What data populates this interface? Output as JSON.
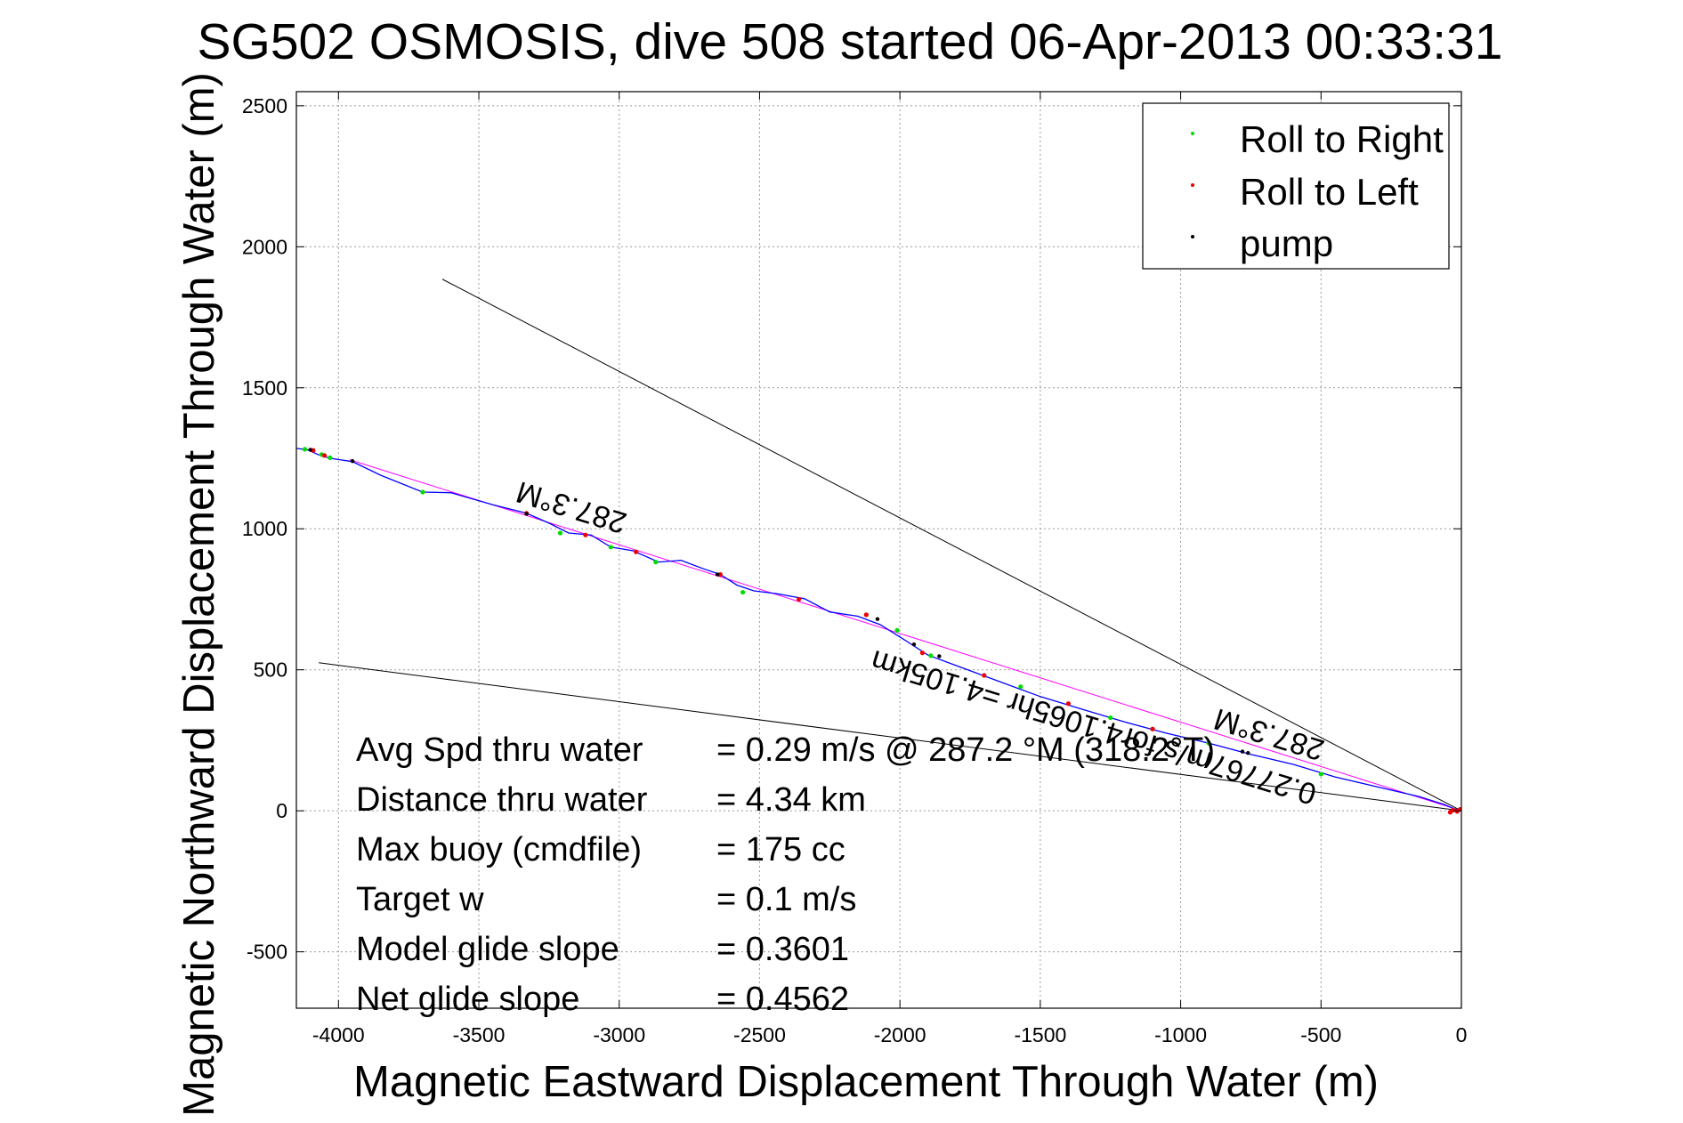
{
  "chart_data": {
    "type": "scatter",
    "title": "SG502 OSMOSIS, dive 508 started 06-Apr-2013 00:33:31",
    "xlabel": "Magnetic Eastward Displacement Through Water (m)",
    "ylabel": "Magnetic Northward Displacement Through Water (m)",
    "xlim": [
      -4150,
      0
    ],
    "ylim": [
      -700,
      2550
    ],
    "xticks": [
      -4000,
      -3500,
      -3000,
      -2500,
      -2000,
      -1500,
      -1000,
      -500,
      0
    ],
    "yticks": [
      -500,
      0,
      500,
      1000,
      1500,
      2000,
      2500
    ],
    "xtick_labels": [
      "-4000",
      "-3500",
      "-3000",
      "-2500",
      "-2000",
      "-1500",
      "-1000",
      "-500",
      "0"
    ],
    "ytick_labels": [
      "-500",
      "0",
      "500",
      "1000",
      "1500",
      "2000",
      "2500"
    ],
    "grid": true,
    "legend_position": "top-right",
    "legend": [
      {
        "label": "Roll to Right",
        "color": "#00dd00"
      },
      {
        "label": "Roll to Left",
        "color": "#ee0000"
      },
      {
        "label": "pump",
        "color": "#000000"
      }
    ],
    "track": {
      "color": "#0000ff",
      "points": [
        [
          -4150,
          1285
        ],
        [
          -4110,
          1280
        ],
        [
          -4070,
          1262
        ],
        [
          -4030,
          1250
        ],
        [
          -3950,
          1238
        ],
        [
          -3850,
          1190
        ],
        [
          -3700,
          1130
        ],
        [
          -3600,
          1128
        ],
        [
          -3450,
          1085
        ],
        [
          -3330,
          1055
        ],
        [
          -3250,
          1020
        ],
        [
          -3180,
          985
        ],
        [
          -3100,
          978
        ],
        [
          -3030,
          935
        ],
        [
          -2950,
          922
        ],
        [
          -2860,
          882
        ],
        [
          -2780,
          888
        ],
        [
          -2700,
          858
        ],
        [
          -2640,
          838
        ],
        [
          -2580,
          800
        ],
        [
          -2520,
          780
        ],
        [
          -2440,
          770
        ],
        [
          -2340,
          752
        ],
        [
          -2250,
          705
        ],
        [
          -2150,
          690
        ],
        [
          -2070,
          660
        ],
        [
          -1990,
          610
        ],
        [
          -1900,
          552
        ],
        [
          -1800,
          515
        ],
        [
          -1650,
          460
        ],
        [
          -1500,
          405
        ],
        [
          -1350,
          360
        ],
        [
          -1200,
          315
        ],
        [
          -1050,
          275
        ],
        [
          -900,
          240
        ],
        [
          -750,
          200
        ],
        [
          -600,
          165
        ],
        [
          -450,
          120
        ],
        [
          -300,
          85
        ],
        [
          -150,
          50
        ],
        [
          -60,
          22
        ],
        [
          -20,
          5
        ],
        [
          0,
          0
        ]
      ]
    },
    "fit_line": {
      "color": "#ff00ff",
      "points": [
        [
          -3960,
          1245
        ],
        [
          0,
          0
        ]
      ]
    },
    "right_roll_points": [
      [
        -4120,
        1282
      ],
      [
        -4060,
        1263
      ],
      [
        -4030,
        1252
      ],
      [
        -3700,
        1130
      ],
      [
        -3210,
        985
      ],
      [
        -3030,
        935
      ],
      [
        -2870,
        882
      ],
      [
        -2560,
        775
      ],
      [
        -2010,
        640
      ],
      [
        -1890,
        550
      ],
      [
        -1570,
        440
      ],
      [
        -1250,
        330
      ],
      [
        -900,
        240
      ],
      [
        -500,
        130
      ]
    ],
    "left_roll_points": [
      [
        -4090,
        1278
      ],
      [
        -4050,
        1260
      ],
      [
        -3330,
        1055
      ],
      [
        -3120,
        978
      ],
      [
        -2940,
        918
      ],
      [
        -2640,
        838
      ],
      [
        -2360,
        750
      ],
      [
        -2120,
        695
      ],
      [
        -1920,
        560
      ],
      [
        -1700,
        480
      ],
      [
        -1400,
        380
      ],
      [
        -1100,
        290
      ],
      [
        -40,
        -5
      ],
      [
        -30,
        2
      ],
      [
        -15,
        -2
      ],
      [
        -5,
        5
      ]
    ],
    "pump_points": [
      [
        -4100,
        1280
      ],
      [
        -3950,
        1240
      ],
      [
        -3330,
        1053
      ],
      [
        -2650,
        838
      ],
      [
        -2080,
        680
      ],
      [
        -1950,
        590
      ],
      [
        -1860,
        548
      ],
      [
        -780,
        210
      ],
      [
        -760,
        205
      ]
    ],
    "reference_lines": [
      {
        "points": [
          [
            -3630,
            1885
          ],
          [
            0,
            0
          ]
        ],
        "color": "#000000"
      },
      {
        "points": [
          [
            -4070,
            525
          ],
          [
            0,
            0
          ]
        ],
        "color": "#000000"
      }
    ],
    "annotations": [
      {
        "text": "287.3°M",
        "x": -3160,
        "y": 1110,
        "rotation": 197
      },
      {
        "text": "0.27767m/s for4.1065hr =4.105km",
        "x": -1300,
        "y": 330,
        "rotation": 197
      },
      {
        "text": "287.3°M",
        "x": -675,
        "y": 305,
        "rotation": 197
      }
    ],
    "stats": [
      {
        "label": "Avg Spd thru water",
        "value": "=  0.29 m/s @ 287.2 °M (318.2°T)"
      },
      {
        "label": "Distance thru water",
        "value": "=  4.34 km"
      },
      {
        "label": "Max buoy (cmdfile)",
        "value": "= 175 cc"
      },
      {
        "label": "Target w",
        "value": "= 0.1 m/s"
      },
      {
        "label": "Model glide slope",
        "value": "= 0.3601"
      },
      {
        "label": "Net glide slope",
        "value": "= 0.4562"
      }
    ]
  }
}
